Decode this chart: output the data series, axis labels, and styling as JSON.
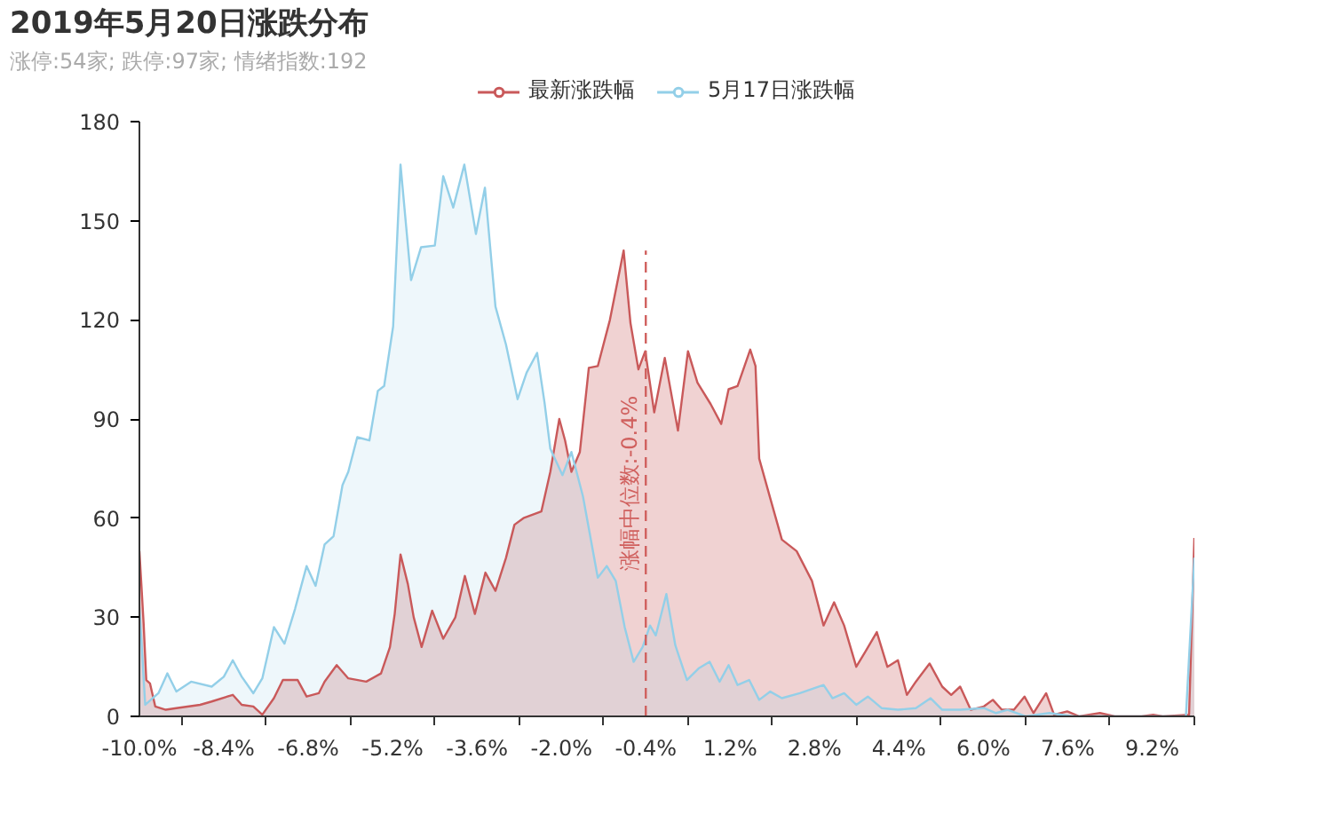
{
  "chart_data": {
    "type": "area",
    "title": "2019年5月20日涨跌分布",
    "subtitle": "涨停:54家; 跌停:97家; 情绪指数:192",
    "xlim": [
      -10.0,
      10.0
    ],
    "ylim": [
      0,
      180
    ],
    "xticks": [
      {
        "value": -10.0,
        "label": "-10.0%"
      },
      {
        "value": -9.2,
        "label": null
      },
      {
        "value": -8.4,
        "label": "-8.4%"
      },
      {
        "value": -7.6,
        "label": null
      },
      {
        "value": -6.8,
        "label": "-6.8%"
      },
      {
        "value": -6.0,
        "label": null
      },
      {
        "value": -5.2,
        "label": "-5.2%"
      },
      {
        "value": -4.4,
        "label": null
      },
      {
        "value": -3.6,
        "label": "-3.6%"
      },
      {
        "value": -2.8,
        "label": null
      },
      {
        "value": -2.0,
        "label": "-2.0%"
      },
      {
        "value": -1.2,
        "label": null
      },
      {
        "value": -0.4,
        "label": "-0.4%"
      },
      {
        "value": 0.4,
        "label": null
      },
      {
        "value": 1.2,
        "label": "1.2%"
      },
      {
        "value": 2.0,
        "label": null
      },
      {
        "value": 2.8,
        "label": "2.8%"
      },
      {
        "value": 3.6,
        "label": null
      },
      {
        "value": 4.4,
        "label": "4.4%"
      },
      {
        "value": 5.2,
        "label": null
      },
      {
        "value": 6.0,
        "label": "6.0%"
      },
      {
        "value": 6.8,
        "label": null
      },
      {
        "value": 7.6,
        "label": "7.6%"
      },
      {
        "value": 8.4,
        "label": null
      },
      {
        "value": 9.2,
        "label": "9.2%"
      },
      {
        "value": 10.0,
        "label": null
      }
    ],
    "yticks": [
      0,
      30,
      60,
      90,
      120,
      150,
      180
    ],
    "grid": false,
    "legend": "top",
    "ref_lines": [
      {
        "axis": "x",
        "value": -0.4,
        "label": "涨幅中位数:-0.4%",
        "color": "#d0605e",
        "line_style": "dashed"
      }
    ],
    "series": [
      {
        "name": "最新涨跌幅",
        "color": "#c9595a",
        "x": [
          -10.0,
          -9.92,
          -9.87,
          -9.8,
          -9.7,
          -9.5,
          -9.3,
          -8.85,
          -8.63,
          -8.23,
          -8.06,
          -7.84,
          -7.67,
          -7.45,
          -7.28,
          -7.0,
          -6.83,
          -6.6,
          -6.49,
          -6.26,
          -6.04,
          -5.7,
          -5.42,
          -5.25,
          -5.16,
          -5.05,
          -4.91,
          -4.8,
          -4.65,
          -4.45,
          -4.24,
          -4.01,
          -3.83,
          -3.64,
          -3.44,
          -3.25,
          -3.05,
          -2.89,
          -2.72,
          -2.38,
          -2.21,
          -2.04,
          -1.93,
          -1.81,
          -1.65,
          -1.48,
          -1.31,
          -1.08,
          -0.82,
          -0.69,
          -0.54,
          -0.41,
          -0.24,
          -0.04,
          0.21,
          0.4,
          0.58,
          0.83,
          1.03,
          1.17,
          1.34,
          1.58,
          1.68,
          1.75,
          1.96,
          2.18,
          2.46,
          2.75,
          2.97,
          3.17,
          3.36,
          3.59,
          3.76,
          3.98,
          4.18,
          4.38,
          4.55,
          4.72,
          4.98,
          5.22,
          5.39,
          5.56,
          5.76,
          6.01,
          6.18,
          6.35,
          6.58,
          6.78,
          6.95,
          7.19,
          7.34,
          7.59,
          7.82,
          8.21,
          8.49,
          9.0,
          9.22,
          9.4,
          9.9,
          10.0
        ],
        "values": [
          50,
          28,
          11,
          10,
          3,
          2,
          2.5,
          3.5,
          4.5,
          6.5,
          3.5,
          3,
          0.5,
          5.5,
          11,
          11,
          6,
          7,
          10.5,
          15.5,
          11.5,
          10.5,
          13,
          21,
          31,
          49,
          40,
          30,
          21,
          32,
          23.5,
          30,
          42.5,
          31,
          43.5,
          38,
          48,
          58,
          60,
          62,
          74,
          90,
          83.5,
          74,
          80,
          105.5,
          106,
          120,
          141,
          119,
          105,
          110.5,
          92,
          108.5,
          86.5,
          110.5,
          101,
          94.5,
          88.5,
          99,
          100,
          111,
          106,
          78,
          66,
          53.5,
          50,
          41,
          27.5,
          34.5,
          27.5,
          15,
          19.5,
          25.5,
          15,
          17,
          6.5,
          10.5,
          16,
          9,
          6.5,
          9,
          2,
          3,
          5,
          2,
          2,
          6,
          1,
          7,
          0.5,
          1.5,
          0,
          1,
          0,
          0,
          0.5,
          0,
          0.5,
          54
        ]
      },
      {
        "name": "5月17日涨跌幅",
        "color": "#93cfe8",
        "x": [
          -10.0,
          -9.89,
          -9.75,
          -9.64,
          -9.47,
          -9.3,
          -9.02,
          -8.63,
          -8.4,
          -8.23,
          -8.06,
          -7.84,
          -7.67,
          -7.45,
          -7.25,
          -7.05,
          -6.83,
          -6.66,
          -6.49,
          -6.32,
          -6.15,
          -6.04,
          -5.87,
          -5.64,
          -5.48,
          -5.36,
          -5.19,
          -5.05,
          -4.85,
          -4.66,
          -4.4,
          -4.24,
          -4.05,
          -3.84,
          -3.62,
          -3.45,
          -3.25,
          -3.05,
          -2.83,
          -2.66,
          -2.46,
          -2.32,
          -2.21,
          -1.98,
          -1.81,
          -1.59,
          -1.31,
          -1.14,
          -0.97,
          -0.8,
          -0.63,
          -0.46,
          -0.32,
          -0.21,
          -0.01,
          0.16,
          0.38,
          0.6,
          0.81,
          1.0,
          1.17,
          1.34,
          1.56,
          1.75,
          1.96,
          2.18,
          2.52,
          2.97,
          3.14,
          3.36,
          3.59,
          3.81,
          4.07,
          4.38,
          4.72,
          5.0,
          5.22,
          5.56,
          6.01,
          6.24,
          6.46,
          6.8,
          7.25,
          7.7,
          9.84,
          10.0
        ],
        "values": [
          33,
          3.5,
          5.5,
          7,
          13,
          7.5,
          10.5,
          9,
          12,
          17,
          12,
          7,
          11.5,
          27,
          22,
          32.5,
          45.5,
          39.5,
          52,
          54.5,
          70,
          74,
          84.5,
          83.5,
          98.5,
          100,
          118,
          167,
          132,
          142,
          142.5,
          163.5,
          154,
          167,
          146,
          160,
          124,
          112.5,
          96,
          104,
          110,
          95,
          81,
          73,
          80,
          66.5,
          42,
          45.5,
          41,
          27,
          16.5,
          21,
          27.5,
          24.5,
          37,
          21.5,
          11,
          14.5,
          16.5,
          10.5,
          15.5,
          9.5,
          11,
          5,
          7.5,
          5.5,
          7,
          9.5,
          5.5,
          7,
          3.5,
          6,
          2.5,
          2,
          2.5,
          5.5,
          2,
          2,
          2.5,
          1,
          2,
          0,
          1,
          0,
          0,
          48
        ]
      }
    ]
  }
}
